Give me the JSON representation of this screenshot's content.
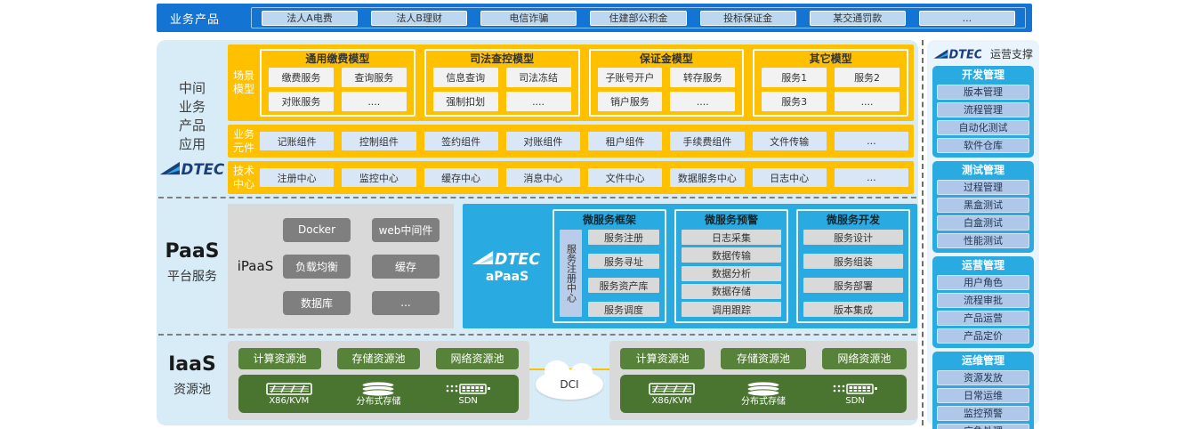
{
  "brand": {
    "name": "DTEC"
  },
  "colors": {
    "top_bar_blue": "#1374D4",
    "accent_blue": "#29ABE2",
    "orange": "#FFC000",
    "main_bg": "#D8ECF8",
    "sidebar_bg": "#E9F4FC",
    "green": "#57823A",
    "dark_green": "#4A7530",
    "gray_box": "#D9D9D9",
    "gray_button": "#7F7F7F",
    "navy_logo": "#1B3F7E"
  },
  "top_bar": {
    "label": "业务产品",
    "products": [
      "法人A电费",
      "法人B理财",
      "电信诈骗",
      "住建部公积金",
      "投标保证金",
      "某交通罚款",
      "..."
    ]
  },
  "middleware": {
    "side_label_lines": [
      "中间",
      "业务",
      "产品",
      "应用"
    ],
    "scenario_row": {
      "label": "场景模型",
      "groups": [
        {
          "title": "通用缴费模型",
          "services": [
            "缴费服务",
            "查询服务",
            "对账服务",
            "...."
          ]
        },
        {
          "title": "司法查控模型",
          "services": [
            "信息查询",
            "司法冻结",
            "强制扣划",
            "...."
          ]
        },
        {
          "title": "保证金模型",
          "services": [
            "子账号开户",
            "转存服务",
            "销户服务",
            "...."
          ]
        },
        {
          "title": "其它模型",
          "services": [
            "服务1",
            "服务2",
            "服务3",
            "...."
          ]
        }
      ]
    },
    "component_row": {
      "label": "业务元件",
      "items": [
        "记账组件",
        "控制组件",
        "签约组件",
        "对账组件",
        "租户组件",
        "手续费组件",
        "文件传输",
        "..."
      ]
    },
    "tech_row": {
      "label": "技术中心",
      "items": [
        "注册中心",
        "监控中心",
        "缓存中心",
        "消息中心",
        "文件中心",
        "数据服务中心",
        "日志中心",
        "..."
      ]
    }
  },
  "paas": {
    "title": "PaaS",
    "subtitle": "平台服务",
    "ipaas": {
      "label": "iPaaS",
      "items": [
        "Docker",
        "web中间件",
        "负载均衡",
        "缓存",
        "数据库",
        "..."
      ]
    },
    "apaas": {
      "label": "aPaaS",
      "registry_label": "服务注册中心",
      "groups": [
        {
          "title": "微服务框架",
          "items": [
            "服务注册",
            "服务寻址",
            "服务资产库",
            "服务调度"
          ]
        },
        {
          "title": "微服务预警",
          "items": [
            "日志采集",
            "数据传输",
            "数据分析",
            "数据存储",
            "调用跟踪"
          ]
        },
        {
          "title": "微服务开发",
          "items": [
            "服务设计",
            "服务组装",
            "服务部署",
            "版本集成"
          ]
        }
      ]
    }
  },
  "iaas": {
    "title": "IaaS",
    "subtitle": "资源池",
    "dci_label": "DCI",
    "pools": [
      {
        "buttons": [
          "计算资源池",
          "存储资源池",
          "网络资源池"
        ],
        "infra": [
          {
            "icon": "server-rack-icon",
            "label": "X86/KVM"
          },
          {
            "icon": "disk-stack-icon",
            "label": "分布式存储"
          },
          {
            "icon": "switch-icon",
            "label": "SDN"
          }
        ]
      },
      {
        "buttons": [
          "计算资源池",
          "存储资源池",
          "网络资源池"
        ],
        "infra": [
          {
            "icon": "server-rack-icon",
            "label": "X86/KVM"
          },
          {
            "icon": "disk-stack-icon",
            "label": "分布式存储"
          },
          {
            "icon": "switch-icon",
            "label": "SDN"
          }
        ]
      }
    ]
  },
  "sidebar": {
    "title": "运营支撑",
    "groups": [
      {
        "title": "开发管理",
        "items": [
          "版本管理",
          "流程管理",
          "自动化测试",
          "软件仓库"
        ]
      },
      {
        "title": "测试管理",
        "items": [
          "过程管理",
          "黑盒测试",
          "白盒测试",
          "性能测试"
        ]
      },
      {
        "title": "运营管理",
        "items": [
          "用户角色",
          "流程审批",
          "产品运营",
          "产品定价"
        ]
      },
      {
        "title": "运维管理",
        "items": [
          "资源发放",
          "日常运维",
          "监控预警",
          "应急处理"
        ]
      }
    ]
  }
}
